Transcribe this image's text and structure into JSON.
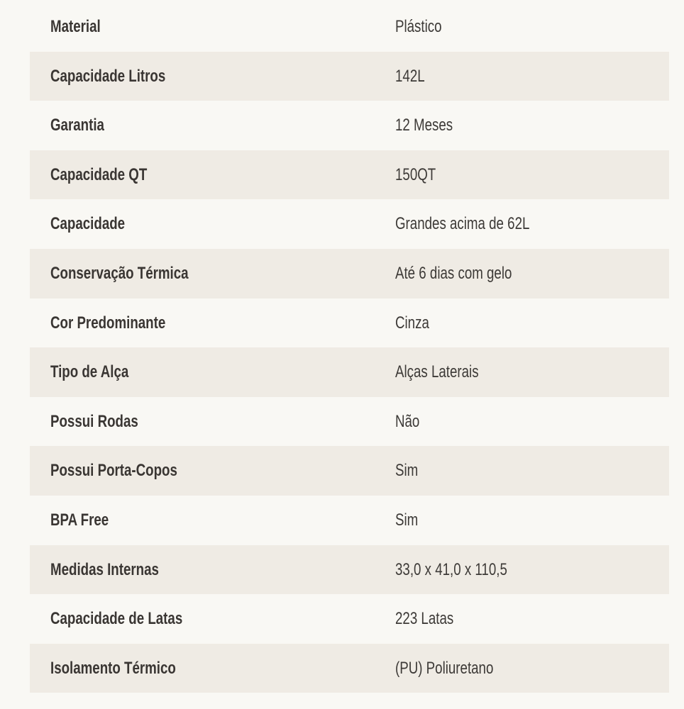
{
  "specs": [
    {
      "label": "Material",
      "value": "Plástico"
    },
    {
      "label": "Capacidade Litros",
      "value": "142L"
    },
    {
      "label": "Garantia",
      "value": "12 Meses"
    },
    {
      "label": "Capacidade QT",
      "value": "150QT"
    },
    {
      "label": "Capacidade",
      "value": "Grandes acima de 62L"
    },
    {
      "label": "Conservação Térmica",
      "value": "Até 6 dias com gelo"
    },
    {
      "label": "Cor Predominante",
      "value": "Cinza"
    },
    {
      "label": "Tipo de Alça",
      "value": "Alças Laterais"
    },
    {
      "label": "Possui Rodas",
      "value": "Não"
    },
    {
      "label": "Possui Porta-Copos",
      "value": "Sim"
    },
    {
      "label": "BPA Free",
      "value": "Sim"
    },
    {
      "label": "Medidas Internas",
      "value": "33,0 x 41,0 x 110,5"
    },
    {
      "label": "Capacidade de Latas",
      "value": "223 Latas"
    },
    {
      "label": "Isolamento Térmico",
      "value": "(PU) Poliuretano"
    }
  ]
}
